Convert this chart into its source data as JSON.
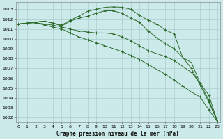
{
  "bg_color": "#cdeaea",
  "grid_color": "#aacece",
  "line_color": "#2d6b2d",
  "marker": "+",
  "title": "Graphe pression niveau de la mer (hPa)",
  "ylim": [
    1001.5,
    1013.7
  ],
  "xlim": [
    -0.3,
    23.3
  ],
  "yticks": [
    1002,
    1003,
    1004,
    1005,
    1006,
    1007,
    1008,
    1009,
    1010,
    1011,
    1012,
    1013
  ],
  "xticks": [
    0,
    1,
    2,
    3,
    4,
    5,
    6,
    7,
    8,
    9,
    10,
    11,
    12,
    13,
    14,
    15,
    16,
    17,
    18,
    19,
    20,
    21,
    22,
    23
  ],
  "curves": [
    [
      1011.5,
      1011.6,
      1011.7,
      1011.8,
      1011.6,
      1011.4,
      1011.9,
      1012.3,
      1012.8,
      1013.0,
      1013.2,
      1013.25,
      1013.2,
      1013.0,
      1012.4,
      1011.9,
      1011.5,
      1010.9,
      1010.5,
      1008.1,
      1007.0,
      1005.3,
      1003.6,
      1001.6
    ],
    [
      1011.5,
      1011.6,
      1011.7,
      1011.8,
      1011.6,
      1011.3,
      1011.8,
      1012.1,
      1012.3,
      1012.6,
      1012.85,
      1012.85,
      1012.6,
      1012.1,
      1011.7,
      1010.8,
      1010.1,
      1009.5,
      1009.0,
      1008.1,
      1007.6,
      1005.5,
      1003.8,
      1001.6
    ],
    [
      1011.5,
      1011.6,
      1011.65,
      1011.5,
      1011.4,
      1011.2,
      1011.0,
      1010.8,
      1010.7,
      1010.6,
      1010.6,
      1010.5,
      1010.2,
      1009.8,
      1009.3,
      1008.8,
      1008.5,
      1008.2,
      1007.8,
      1007.2,
      1006.6,
      1005.5,
      1004.3,
      1001.6
    ],
    [
      1011.5,
      1011.6,
      1011.65,
      1011.4,
      1011.2,
      1011.0,
      1010.6,
      1010.2,
      1009.9,
      1009.6,
      1009.3,
      1009.0,
      1008.7,
      1008.3,
      1007.9,
      1007.4,
      1006.9,
      1006.4,
      1005.8,
      1005.2,
      1004.6,
      1004.1,
      1002.8,
      1001.6
    ]
  ]
}
